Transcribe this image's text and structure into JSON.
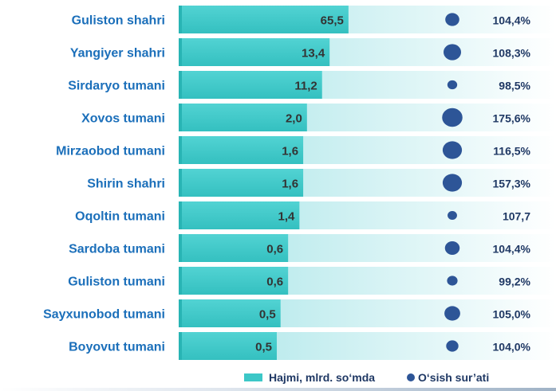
{
  "colors": {
    "bar": "#3cc7c7",
    "bar_dark": "#28b4b4",
    "track_start": "#a8e5e8",
    "track_end": "#ffffff",
    "circle": "#2d5597",
    "label": "#1b6fba",
    "value": "#333333",
    "pct": "#1f3864"
  },
  "legend": {
    "bar_label": "Hajmi, mlrd. so‘mda",
    "dot_label": "O‘sish sur’ati"
  },
  "chart_data": {
    "type": "bar",
    "orientation": "horizontal",
    "categories": [
      "Guliston shahri",
      "Yangiyer shahri",
      "Sirdaryo tumani",
      "Xovos tumani",
      "Mirzaobod tumani",
      "Shirin shahri",
      "Oqoltin tumani",
      "Sardoba tumani",
      "Guliston tumani",
      "Sayxunobod tumani",
      "Boyovut tumani"
    ],
    "series": [
      {
        "name": "Hajmi, mlrd. so‘mda",
        "values": [
          65.5,
          13.4,
          11.2,
          2.0,
          1.6,
          1.6,
          1.4,
          0.6,
          0.6,
          0.5,
          0.5
        ],
        "labels": [
          "65,5",
          "13,4",
          "11,2",
          "2,0",
          "1,6",
          "1,6",
          "1,4",
          "0,6",
          "0,6",
          "0,5",
          "0,5"
        ]
      },
      {
        "name": "O‘sish sur’ati",
        "values": [
          104.4,
          108.3,
          98.5,
          175.6,
          116.5,
          157.3,
          107.7,
          104.4,
          99.2,
          105.0,
          104.0
        ],
        "labels": [
          "104,4%",
          "108,3%",
          "98,5%",
          "175,6%",
          "116,5%",
          "157,3%",
          "107,7",
          "104,4%",
          "99,2%",
          "105,0%",
          "104,0%"
        ]
      }
    ],
    "bar_fill_fraction": [
      0.45,
      0.4,
      0.38,
      0.34,
      0.33,
      0.33,
      0.32,
      0.29,
      0.29,
      0.27,
      0.26
    ],
    "circle_size_fraction": [
      0.4,
      0.5,
      0.28,
      0.58,
      0.55,
      0.55,
      0.27,
      0.42,
      0.3,
      0.45,
      0.35
    ],
    "legend_position": "bottom"
  }
}
